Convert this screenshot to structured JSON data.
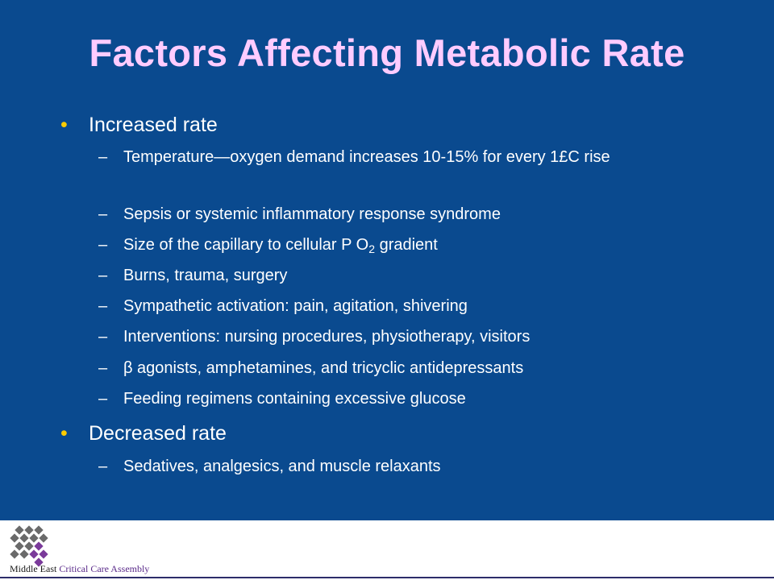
{
  "slide": {
    "title": "Factors Affecting Metabolic Rate",
    "colors": {
      "background": "#0a4a8f",
      "title": "#ffccff",
      "bullet_marker": "#ffcc00",
      "text": "#ffffff"
    },
    "sections": [
      {
        "heading": "Increased rate",
        "items": [
          "Temperature—oxygen demand increases 10-15% for every 1£C rise",
          "Sepsis or systemic inflammatory response syndrome",
          {
            "before": "Size of the capillary to cellular P O",
            "sub": "2",
            "after": " gradient"
          },
          "Burns, trauma, surgery",
          "Sympathetic activation: pain, agitation, shivering",
          "Interventions: nursing procedures, physiotherapy, visitors",
          "β agonists, amphetamines, and tricyclic antidepressants",
          "Feeding regimens containing excessive glucose"
        ]
      },
      {
        "heading": "Decreased rate",
        "items": [
          "Sedatives, analgesics, and muscle relaxants"
        ]
      }
    ],
    "bullet_char": "•",
    "dash_char": "–"
  },
  "footer": {
    "org_part1": "Middle East ",
    "org_part2": "Critical Care Assembly",
    "logo_icon": "diamond-grid-logo-icon"
  }
}
